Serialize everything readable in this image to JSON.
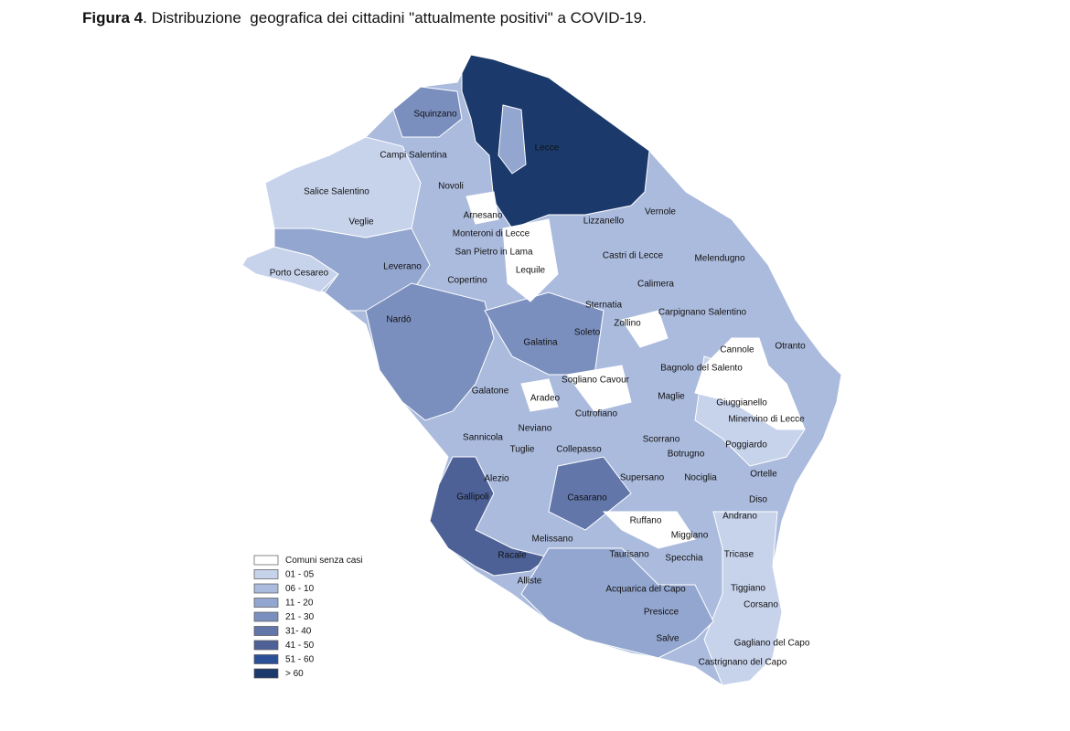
{
  "caption": {
    "label": "Figura 4",
    "text": ". Distribuzione  geografica dei cittadini \"attualmente positivi\" a COVID-19."
  },
  "legend": [
    {
      "label": "Comuni senza casi",
      "color": "#ffffff"
    },
    {
      "label": "01 - 05",
      "color": "#c7d3eb"
    },
    {
      "label": "06 - 10",
      "color": "#abbbdd"
    },
    {
      "label": "11 - 20",
      "color": "#93a6d0"
    },
    {
      "label": "21 - 30",
      "color": "#7b8fbf"
    },
    {
      "label": "31- 40",
      "color": "#6276aa"
    },
    {
      "label": "41 - 50",
      "color": "#4d6197"
    },
    {
      "label": "51 - 60",
      "color": "#2c5098"
    },
    {
      "label": "> 60",
      "color": "#1b3a6b"
    }
  ],
  "places": [
    "Squinzano",
    "Campi Salentina",
    "Lecce",
    "Salice Salentino",
    "Novoli",
    "Veglie",
    "Arnesano",
    "Lizzanello",
    "Vernole",
    "Monteroni di Lecce",
    "San Pietro in Lama",
    "Castri di Lecce",
    "Melendugno",
    "Porto Cesareo",
    "Leverano",
    "Lequile",
    "Copertino",
    "Calimera",
    "Sternatia",
    "Carpignano Salentino",
    "Nardò",
    "Zollino",
    "Soleto",
    "Galatina",
    "Cannole",
    "Otranto",
    "Bagnolo del Salento",
    "Sogliano Cavour",
    "Galatone",
    "Aradeo",
    "Maglie",
    "Giuggianello",
    "Cutrofiano",
    "Minervino di Lecce",
    "Neviano",
    "Sannicola",
    "Scorrano",
    "Tuglie",
    "Collepasso",
    "Poggiardo",
    "Botrugno",
    "Alezio",
    "Supersano",
    "Nociglia",
    "Ortelle",
    "Gallipoli",
    "Casarano",
    "Diso",
    "Ruffano",
    "Andrano",
    "Miggiano",
    "Melissano",
    "Taurisano",
    "Specchia",
    "Tricase",
    "Racale",
    "Alliste",
    "Acquarica del Capo",
    "Tiggiano",
    "Corsano",
    "Presicce",
    "Salve",
    "Gagliano del Capo",
    "Castrignano del Capo"
  ]
}
